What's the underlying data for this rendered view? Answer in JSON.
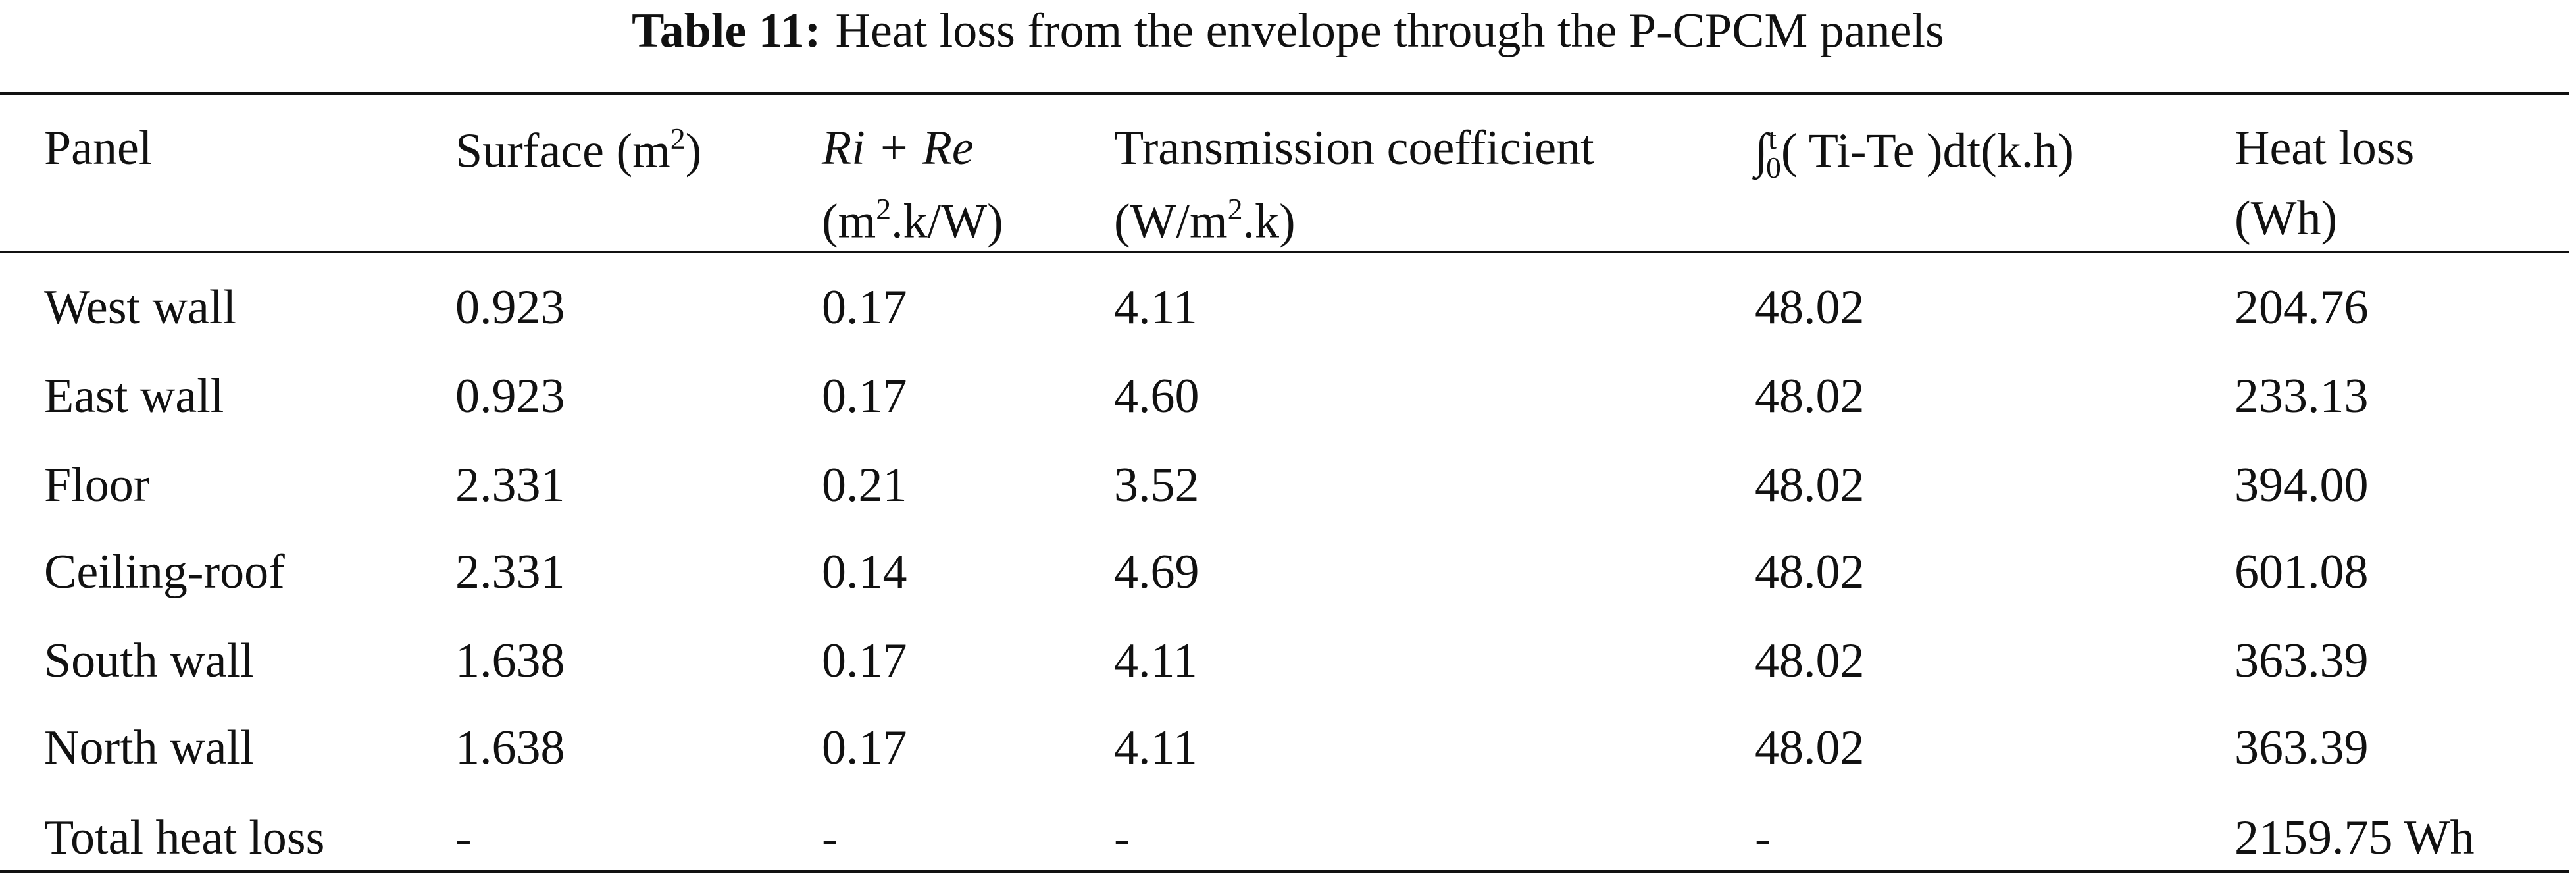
{
  "caption": {
    "label": "Table 11:",
    "text": "Heat loss from the envelope through the P-CPCM panels"
  },
  "table": {
    "columns": [
      {
        "lines": [
          [
            {
              "text": "Panel"
            }
          ]
        ]
      },
      {
        "lines": [
          [
            {
              "text": "Surface (m"
            },
            {
              "text": "2",
              "style": "sup"
            },
            {
              "text": ")"
            }
          ]
        ]
      },
      {
        "lines": [
          [
            {
              "text": "Ri + Re",
              "style": "italic"
            }
          ],
          [
            {
              "text": "(m"
            },
            {
              "text": "2",
              "style": "sup"
            },
            {
              "text": ".k/W)"
            }
          ]
        ]
      },
      {
        "lines": [
          [
            {
              "text": "Transmission coefficient"
            }
          ],
          [
            {
              "text": "(W/m"
            },
            {
              "text": "2",
              "style": "sup"
            },
            {
              "text": ".k)"
            }
          ]
        ]
      },
      {
        "lines": [
          [
            {
              "text": "∫"
            },
            {
              "text": "t",
              "style": "sup"
            },
            {
              "text": "0",
              "style": "sub"
            },
            {
              "text": "( Ti-Te )dt(k.h)"
            }
          ]
        ]
      },
      {
        "lines": [
          [
            {
              "text": "Heat loss"
            }
          ],
          [
            {
              "text": "(Wh)"
            }
          ]
        ]
      }
    ],
    "rows": [
      [
        "West wall",
        "0.923",
        "0.17",
        "4.11",
        "48.02",
        "204.76"
      ],
      [
        "East wall",
        "0.923",
        "0.17",
        "4.60",
        "48.02",
        "233.13"
      ],
      [
        "Floor",
        "2.331",
        "0.21",
        "3.52",
        "48.02",
        "394.00"
      ],
      [
        "Ceiling-roof",
        "2.331",
        "0.14",
        "4.69",
        "48.02",
        "601.08"
      ],
      [
        "South wall",
        "1.638",
        "0.17",
        "4.11",
        "48.02",
        "363.39"
      ],
      [
        "North wall",
        "1.638",
        "0.17",
        "4.11",
        "48.02",
        "363.39"
      ],
      [
        "Total heat loss",
        "-",
        "-",
        "-",
        "-",
        "2159.75 Wh"
      ]
    ]
  }
}
